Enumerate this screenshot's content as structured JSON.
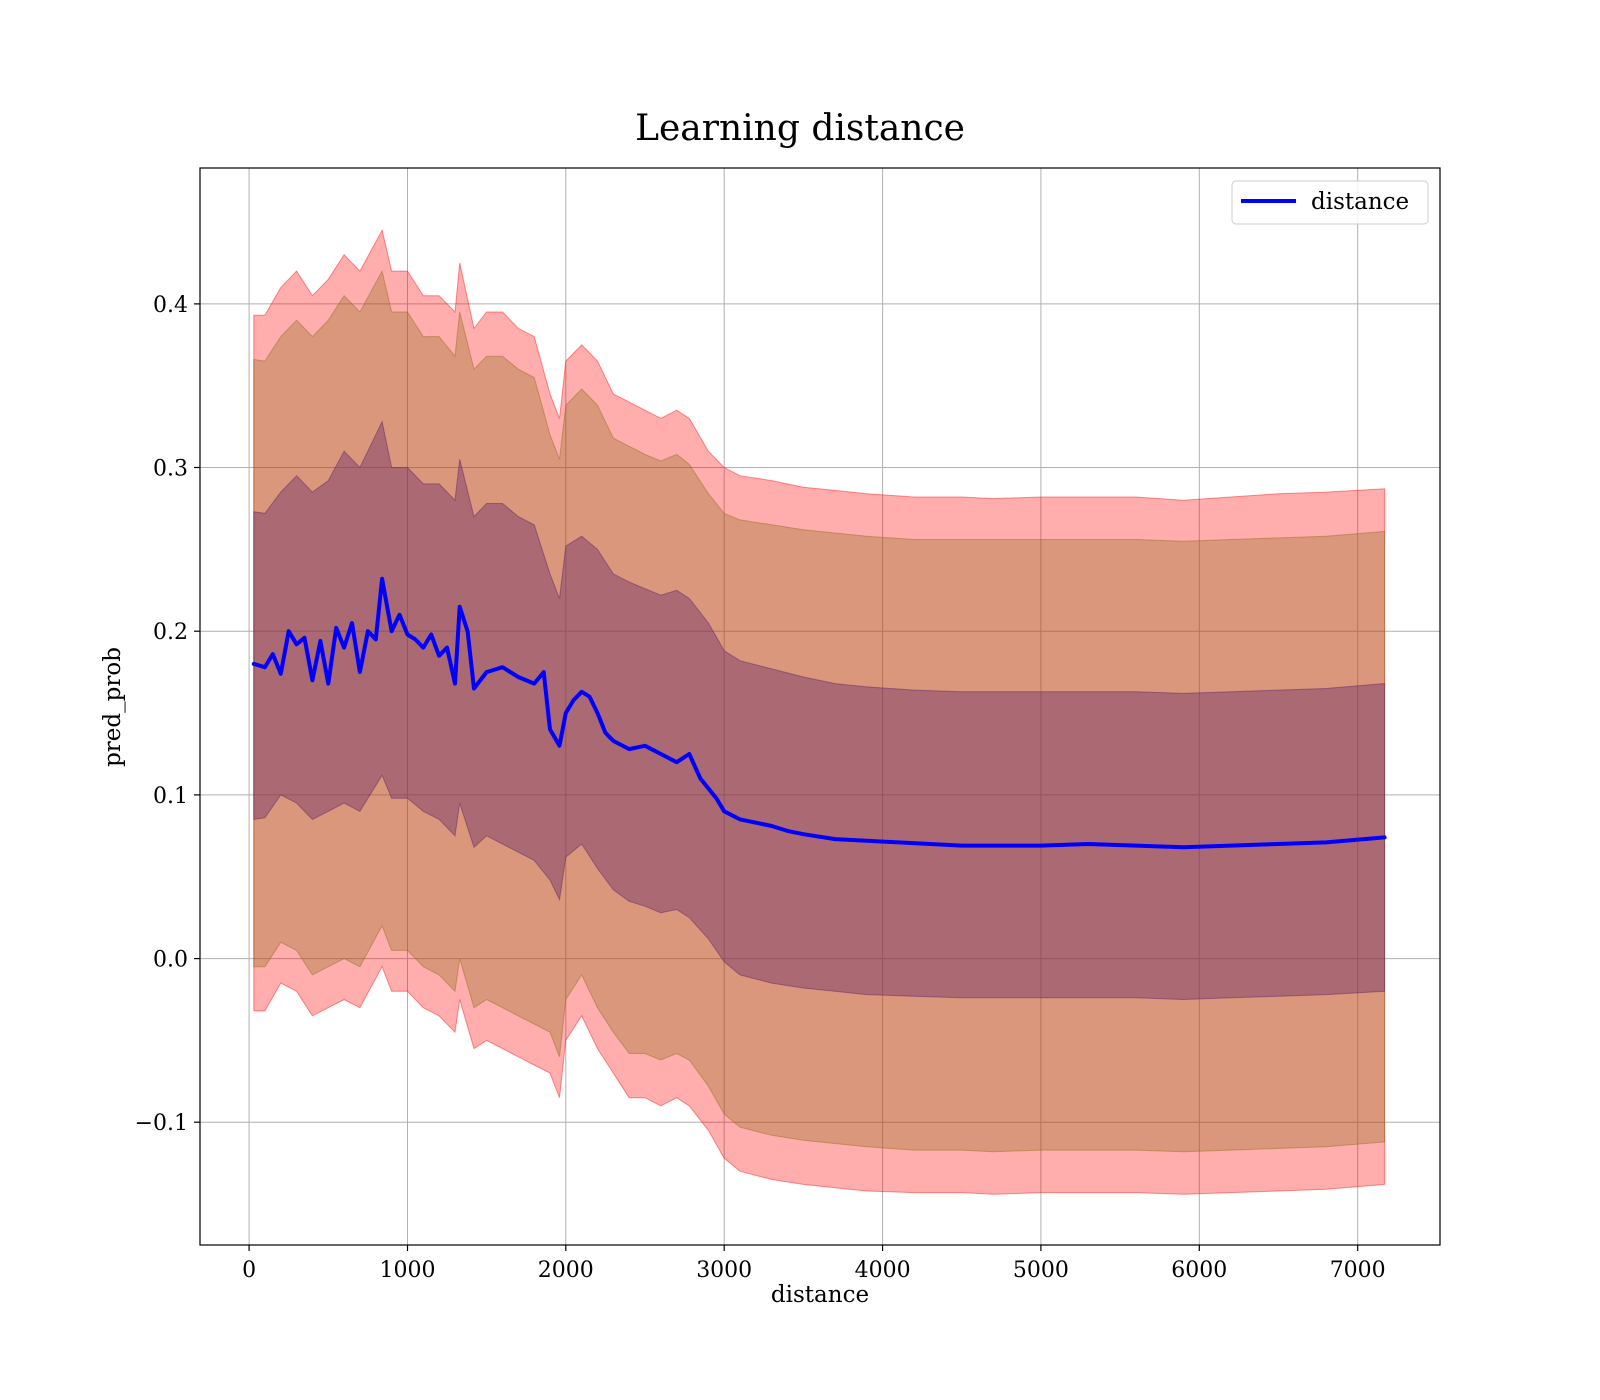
{
  "chart_data": {
    "type": "line",
    "title": "Learning distance",
    "xlabel": "distance",
    "ylabel": "pred_prob",
    "xlim": [
      -310,
      7520
    ],
    "ylim": [
      -0.175,
      0.483
    ],
    "grid": true,
    "legend_position": "top-right",
    "x_ticks": [
      0,
      1000,
      2000,
      3000,
      4000,
      5000,
      6000,
      7000
    ],
    "x_tick_labels": [
      "0",
      "1000",
      "2000",
      "3000",
      "4000",
      "5000",
      "6000",
      "7000"
    ],
    "y_ticks": [
      -0.1,
      0.0,
      0.1,
      0.2,
      0.3,
      0.4
    ],
    "y_tick_labels": [
      "−0.1",
      "0.0",
      "0.1",
      "0.2",
      "0.3",
      "0.4"
    ],
    "series": [
      {
        "name": "distance",
        "color": "#0000ff",
        "x": [
          30,
          100,
          150,
          200,
          250,
          300,
          350,
          400,
          450,
          500,
          550,
          600,
          650,
          700,
          750,
          800,
          840,
          900,
          950,
          1000,
          1050,
          1100,
          1150,
          1200,
          1250,
          1300,
          1330,
          1380,
          1420,
          1500,
          1600,
          1700,
          1800,
          1860,
          1900,
          1960,
          2000,
          2050,
          2100,
          2150,
          2200,
          2250,
          2300,
          2400,
          2500,
          2600,
          2700,
          2780,
          2850,
          2950,
          3000,
          3100,
          3200,
          3300,
          3400,
          3500,
          3700,
          3900,
          4100,
          4300,
          4500,
          4700,
          5000,
          5300,
          5600,
          5900,
          6200,
          6500,
          6800,
          7170
        ],
        "values": [
          0.18,
          0.178,
          0.186,
          0.174,
          0.2,
          0.192,
          0.196,
          0.17,
          0.194,
          0.168,
          0.202,
          0.19,
          0.205,
          0.175,
          0.2,
          0.195,
          0.232,
          0.2,
          0.21,
          0.198,
          0.195,
          0.19,
          0.198,
          0.185,
          0.19,
          0.168,
          0.215,
          0.2,
          0.165,
          0.175,
          0.178,
          0.172,
          0.168,
          0.175,
          0.14,
          0.13,
          0.15,
          0.158,
          0.163,
          0.16,
          0.15,
          0.138,
          0.133,
          0.128,
          0.13,
          0.125,
          0.12,
          0.125,
          0.11,
          0.098,
          0.09,
          0.085,
          0.083,
          0.081,
          0.078,
          0.076,
          0.073,
          0.072,
          0.071,
          0.07,
          0.069,
          0.069,
          0.069,
          0.07,
          0.069,
          0.068,
          0.069,
          0.07,
          0.071,
          0.074
        ]
      }
    ],
    "bands": [
      {
        "color": "#ff0000",
        "opacity": 0.32,
        "x": [
          30,
          100,
          200,
          300,
          400,
          500,
          600,
          700,
          840,
          900,
          1000,
          1100,
          1200,
          1300,
          1330,
          1420,
          1500,
          1600,
          1700,
          1800,
          1900,
          1960,
          2000,
          2100,
          2200,
          2300,
          2400,
          2500,
          2600,
          2700,
          2780,
          2900,
          3000,
          3100,
          3300,
          3500,
          3700,
          3900,
          4200,
          4500,
          4700,
          5000,
          5300,
          5600,
          5900,
          6200,
          6500,
          6800,
          7170
        ],
        "upper": [
          0.393,
          0.393,
          0.41,
          0.42,
          0.405,
          0.415,
          0.43,
          0.42,
          0.445,
          0.42,
          0.42,
          0.405,
          0.405,
          0.395,
          0.425,
          0.385,
          0.395,
          0.395,
          0.385,
          0.38,
          0.345,
          0.33,
          0.365,
          0.375,
          0.365,
          0.345,
          0.34,
          0.335,
          0.33,
          0.335,
          0.33,
          0.31,
          0.3,
          0.295,
          0.292,
          0.288,
          0.286,
          0.284,
          0.282,
          0.282,
          0.281,
          0.282,
          0.282,
          0.282,
          0.28,
          0.282,
          0.284,
          0.285,
          0.287
        ],
        "lower": [
          -0.032,
          -0.032,
          -0.015,
          -0.02,
          -0.035,
          -0.03,
          -0.025,
          -0.03,
          -0.005,
          -0.02,
          -0.02,
          -0.03,
          -0.035,
          -0.045,
          -0.025,
          -0.055,
          -0.05,
          -0.055,
          -0.06,
          -0.065,
          -0.07,
          -0.085,
          -0.05,
          -0.035,
          -0.055,
          -0.07,
          -0.085,
          -0.085,
          -0.09,
          -0.085,
          -0.09,
          -0.105,
          -0.122,
          -0.13,
          -0.135,
          -0.138,
          -0.14,
          -0.142,
          -0.143,
          -0.143,
          -0.144,
          -0.143,
          -0.143,
          -0.143,
          -0.144,
          -0.143,
          -0.142,
          -0.141,
          -0.138
        ]
      },
      {
        "color": "#8b6914",
        "opacity": 0.32,
        "x": [
          30,
          100,
          200,
          300,
          400,
          500,
          600,
          700,
          840,
          900,
          1000,
          1100,
          1200,
          1300,
          1330,
          1420,
          1500,
          1600,
          1700,
          1800,
          1900,
          1960,
          2000,
          2100,
          2200,
          2300,
          2400,
          2500,
          2600,
          2700,
          2780,
          2900,
          3000,
          3100,
          3300,
          3500,
          3700,
          3900,
          4200,
          4500,
          4700,
          5000,
          5300,
          5600,
          5900,
          6200,
          6500,
          6800,
          7170
        ],
        "upper": [
          0.366,
          0.365,
          0.38,
          0.39,
          0.38,
          0.39,
          0.405,
          0.395,
          0.42,
          0.395,
          0.395,
          0.38,
          0.38,
          0.368,
          0.395,
          0.36,
          0.368,
          0.368,
          0.36,
          0.355,
          0.32,
          0.305,
          0.338,
          0.348,
          0.338,
          0.318,
          0.313,
          0.308,
          0.304,
          0.308,
          0.302,
          0.284,
          0.272,
          0.268,
          0.265,
          0.262,
          0.26,
          0.258,
          0.256,
          0.256,
          0.256,
          0.256,
          0.256,
          0.256,
          0.255,
          0.256,
          0.257,
          0.258,
          0.261
        ],
        "lower": [
          -0.005,
          -0.005,
          0.01,
          0.005,
          -0.01,
          -0.005,
          0.0,
          -0.005,
          0.02,
          0.005,
          0.005,
          -0.005,
          -0.01,
          -0.02,
          0.0,
          -0.03,
          -0.025,
          -0.03,
          -0.035,
          -0.04,
          -0.045,
          -0.06,
          -0.025,
          -0.01,
          -0.03,
          -0.045,
          -0.058,
          -0.058,
          -0.062,
          -0.058,
          -0.062,
          -0.078,
          -0.095,
          -0.103,
          -0.108,
          -0.111,
          -0.113,
          -0.115,
          -0.117,
          -0.117,
          -0.118,
          -0.117,
          -0.117,
          -0.117,
          -0.118,
          -0.117,
          -0.116,
          -0.115,
          -0.112
        ]
      },
      {
        "color": "#6a2a6a",
        "opacity": 0.42,
        "x": [
          30,
          100,
          200,
          300,
          400,
          500,
          600,
          700,
          840,
          900,
          1000,
          1100,
          1200,
          1300,
          1330,
          1420,
          1500,
          1600,
          1700,
          1800,
          1900,
          1960,
          2000,
          2100,
          2200,
          2300,
          2400,
          2500,
          2600,
          2700,
          2780,
          2900,
          3000,
          3100,
          3300,
          3500,
          3700,
          3900,
          4200,
          4500,
          4700,
          5000,
          5300,
          5600,
          5900,
          6200,
          6500,
          6800,
          7170
        ],
        "upper": [
          0.273,
          0.272,
          0.285,
          0.295,
          0.285,
          0.292,
          0.31,
          0.3,
          0.328,
          0.3,
          0.3,
          0.29,
          0.29,
          0.28,
          0.305,
          0.27,
          0.278,
          0.278,
          0.27,
          0.265,
          0.235,
          0.22,
          0.252,
          0.258,
          0.25,
          0.235,
          0.23,
          0.226,
          0.222,
          0.225,
          0.22,
          0.205,
          0.188,
          0.182,
          0.177,
          0.172,
          0.168,
          0.166,
          0.164,
          0.163,
          0.163,
          0.163,
          0.163,
          0.163,
          0.162,
          0.163,
          0.164,
          0.165,
          0.168
        ],
        "lower": [
          0.085,
          0.086,
          0.1,
          0.095,
          0.085,
          0.09,
          0.095,
          0.09,
          0.112,
          0.098,
          0.098,
          0.09,
          0.085,
          0.075,
          0.095,
          0.068,
          0.075,
          0.07,
          0.065,
          0.06,
          0.048,
          0.036,
          0.062,
          0.07,
          0.055,
          0.042,
          0.035,
          0.032,
          0.028,
          0.03,
          0.025,
          0.012,
          -0.002,
          -0.01,
          -0.015,
          -0.018,
          -0.02,
          -0.022,
          -0.023,
          -0.024,
          -0.024,
          -0.024,
          -0.024,
          -0.024,
          -0.025,
          -0.024,
          -0.023,
          -0.022,
          -0.02
        ]
      }
    ]
  }
}
